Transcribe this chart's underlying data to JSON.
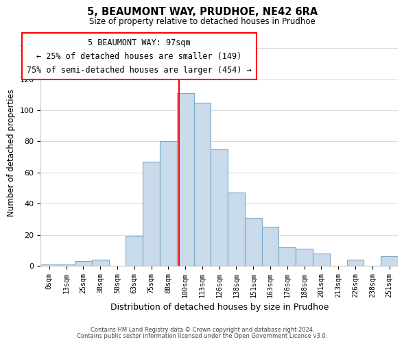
{
  "title": "5, BEAUMONT WAY, PRUDHOE, NE42 6RA",
  "subtitle": "Size of property relative to detached houses in Prudhoe",
  "xlabel": "Distribution of detached houses by size in Prudhoe",
  "ylabel": "Number of detached properties",
  "bar_labels": [
    "0sqm",
    "13sqm",
    "25sqm",
    "38sqm",
    "50sqm",
    "63sqm",
    "75sqm",
    "88sqm",
    "100sqm",
    "113sqm",
    "126sqm",
    "138sqm",
    "151sqm",
    "163sqm",
    "176sqm",
    "188sqm",
    "201sqm",
    "213sqm",
    "226sqm",
    "238sqm",
    "251sqm"
  ],
  "bar_values": [
    1,
    1,
    3,
    4,
    0,
    19,
    67,
    80,
    111,
    105,
    75,
    47,
    31,
    25,
    12,
    11,
    8,
    0,
    4,
    0,
    6
  ],
  "bar_color": "#c9daea",
  "bar_edge_color": "#7aaac8",
  "red_line_index": 8,
  "annotation_title": "5 BEAUMONT WAY: 97sqm",
  "annotation_line1": "← 25% of detached houses are smaller (149)",
  "annotation_line2": "75% of semi-detached houses are larger (454) →",
  "ylim": [
    0,
    145
  ],
  "yticks": [
    0,
    20,
    40,
    60,
    80,
    100,
    120,
    140
  ],
  "footer1": "Contains HM Land Registry data © Crown copyright and database right 2024.",
  "footer2": "Contains public sector information licensed under the Open Government Licence v3.0.",
  "bg_color": "#ffffff",
  "grid_color": "#d8d8d8"
}
